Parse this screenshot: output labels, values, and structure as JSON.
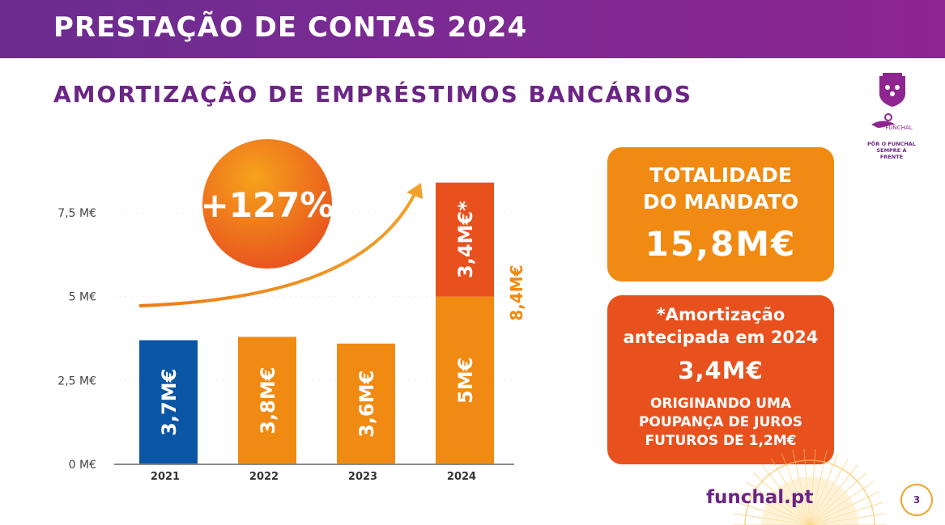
{
  "header": {
    "title": "PRESTAÇÃO DE CONTAS 2024"
  },
  "subtitle": "AMORTIZAÇÃO DE EMPRÉSTIMOS BANCÁRIOS",
  "chart_data": {
    "type": "bar",
    "categories": [
      "2021",
      "2022",
      "2023",
      "2024"
    ],
    "series": [
      {
        "values": [
          3.7,
          3.8,
          3.6,
          5.0
        ],
        "labels": [
          "3,7M€",
          "3,8M€",
          "3,6M€",
          "5M€"
        ],
        "colors": [
          "#0a56a5",
          "#f08a12",
          "#f08a12",
          "#f08a12"
        ]
      },
      {
        "values": [
          0,
          0,
          0,
          3.4
        ],
        "labels": [
          "",
          "",
          "",
          "3,4M€*"
        ],
        "colors": [
          "#e8511e",
          "#e8511e",
          "#e8511e",
          "#e8511e"
        ]
      }
    ],
    "total_2024_label": "8,4M€",
    "y_ticks": [
      {
        "value": 0,
        "label": "0 M€"
      },
      {
        "value": 2.5,
        "label": "2,5 M€"
      },
      {
        "value": 5,
        "label": "5 M€"
      },
      {
        "value": 7.5,
        "label": "7,5 M€"
      }
    ],
    "ylim": [
      0,
      8.4
    ],
    "growth_badge": "+127%",
    "colors": {
      "blue": "#0a56a5",
      "orange": "#f08a12",
      "red": "#e8511e"
    }
  },
  "cards": {
    "total": {
      "label_line1": "TOTALIDADE",
      "label_line2": "DO MANDATO",
      "value": "15,8M€"
    },
    "early": {
      "label_line1": "*Amortização",
      "label_line2": "antecipada em 2024",
      "value": "3,4M€",
      "foot_line1": "ORIGINANDO UMA",
      "foot_line2": "POUPANÇA DE JUROS",
      "foot_line3": "FUTUROS DE 1,2M€"
    }
  },
  "logo": {
    "name": "FUNCHAL",
    "tagline_line1": "PÔR O FUNCHAL",
    "tagline_line2": "SEMPRE À FRENTE"
  },
  "footer": {
    "site": "funchal.pt",
    "page": "3"
  }
}
